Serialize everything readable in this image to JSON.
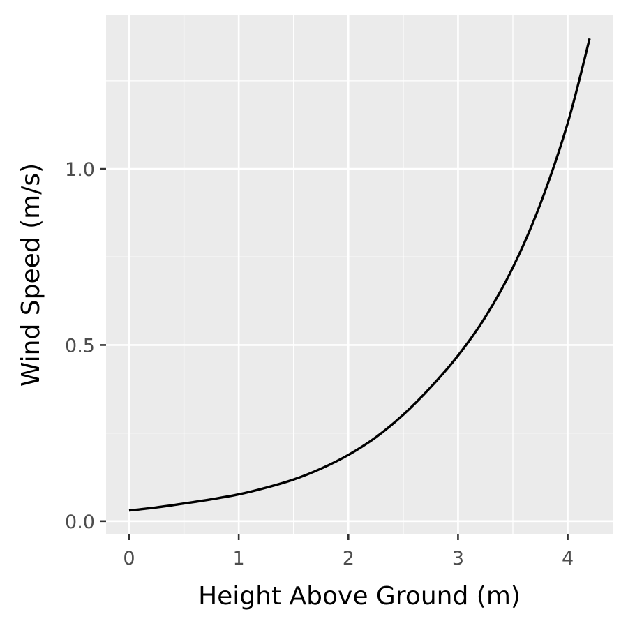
{
  "chart_data": {
    "type": "line",
    "title": "",
    "xlabel": "Height Above Ground (m)",
    "ylabel": "Wind Speed (m/s)",
    "xlim": [
      -0.21,
      4.41
    ],
    "ylim": [
      -0.036,
      1.436
    ],
    "x_ticks": [
      0,
      1,
      2,
      3,
      4
    ],
    "x_tick_labels": [
      "0",
      "1",
      "2",
      "3",
      "4"
    ],
    "y_ticks": [
      0.0,
      0.5,
      1.0
    ],
    "y_tick_labels": [
      "0.0",
      "0.5",
      "1.0"
    ],
    "grid": true,
    "legend": "none",
    "panel_color": "#ebebeb",
    "line_color": "#000000",
    "series": [
      {
        "x": [
          0,
          0.25,
          0.5,
          0.75,
          1.0,
          1.25,
          1.5,
          1.75,
          2.0,
          2.25,
          2.5,
          2.75,
          3.0,
          3.25,
          3.5,
          3.75,
          4.0,
          4.2
        ],
        "y": [
          0.03,
          0.039,
          0.05,
          0.062,
          0.076,
          0.095,
          0.118,
          0.149,
          0.188,
          0.238,
          0.302,
          0.38,
          0.47,
          0.58,
          0.72,
          0.9,
          1.13,
          1.37
        ]
      }
    ]
  }
}
